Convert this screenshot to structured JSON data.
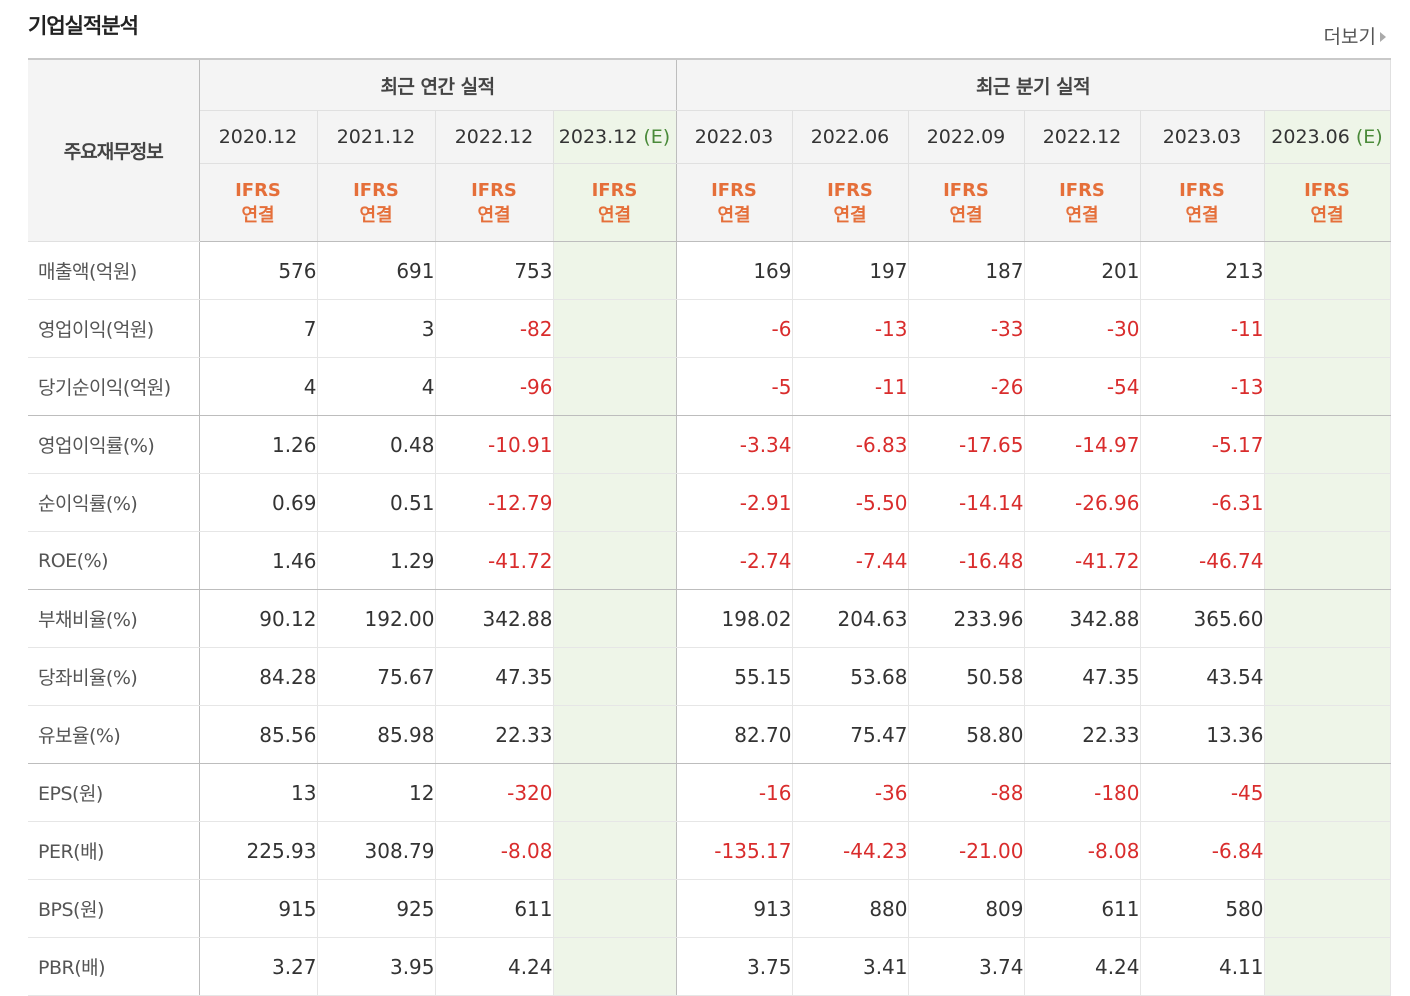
{
  "title": "기업실적분석",
  "more_label": "더보기",
  "row_header": "주요재무정보",
  "groups": {
    "annual": "최근 연간 실적",
    "quarterly": "최근 분기 실적"
  },
  "periods": [
    {
      "label": "2020.12",
      "estimate": ""
    },
    {
      "label": "2021.12",
      "estimate": ""
    },
    {
      "label": "2022.12",
      "estimate": ""
    },
    {
      "label": "2023.12",
      "estimate": "(E)"
    },
    {
      "label": "2022.03",
      "estimate": ""
    },
    {
      "label": "2022.06",
      "estimate": ""
    },
    {
      "label": "2022.09",
      "estimate": ""
    },
    {
      "label": "2022.12",
      "estimate": ""
    },
    {
      "label": "2023.03",
      "estimate": ""
    },
    {
      "label": "2023.06",
      "estimate": "(E)"
    }
  ],
  "standard": {
    "line1": "IFRS",
    "line2": "연결"
  },
  "rows": [
    {
      "label": "매출액(억원)",
      "values": [
        "576",
        "691",
        "753",
        "",
        "169",
        "197",
        "187",
        "201",
        "213",
        ""
      ]
    },
    {
      "label": "영업이익(억원)",
      "values": [
        "7",
        "3",
        "-82",
        "",
        "-6",
        "-13",
        "-33",
        "-30",
        "-11",
        ""
      ]
    },
    {
      "label": "당기순이익(억원)",
      "values": [
        "4",
        "4",
        "-96",
        "",
        "-5",
        "-11",
        "-26",
        "-54",
        "-13",
        ""
      ]
    },
    {
      "label": "영업이익률(%)",
      "values": [
        "1.26",
        "0.48",
        "-10.91",
        "",
        "-3.34",
        "-6.83",
        "-17.65",
        "-14.97",
        "-5.17",
        ""
      ]
    },
    {
      "label": "순이익률(%)",
      "values": [
        "0.69",
        "0.51",
        "-12.79",
        "",
        "-2.91",
        "-5.50",
        "-14.14",
        "-26.96",
        "-6.31",
        ""
      ]
    },
    {
      "label": "ROE(%)",
      "values": [
        "1.46",
        "1.29",
        "-41.72",
        "",
        "-2.74",
        "-7.44",
        "-16.48",
        "-41.72",
        "-46.74",
        ""
      ]
    },
    {
      "label": "부채비율(%)",
      "values": [
        "90.12",
        "192.00",
        "342.88",
        "",
        "198.02",
        "204.63",
        "233.96",
        "342.88",
        "365.60",
        ""
      ]
    },
    {
      "label": "당좌비율(%)",
      "values": [
        "84.28",
        "75.67",
        "47.35",
        "",
        "55.15",
        "53.68",
        "50.58",
        "47.35",
        "43.54",
        ""
      ]
    },
    {
      "label": "유보율(%)",
      "values": [
        "85.56",
        "85.98",
        "22.33",
        "",
        "82.70",
        "75.47",
        "58.80",
        "22.33",
        "13.36",
        ""
      ]
    },
    {
      "label": "EPS(원)",
      "values": [
        "13",
        "12",
        "-320",
        "",
        "-16",
        "-36",
        "-88",
        "-180",
        "-45",
        ""
      ]
    },
    {
      "label": "PER(배)",
      "values": [
        "225.93",
        "308.79",
        "-8.08",
        "",
        "-135.17",
        "-44.23",
        "-21.00",
        "-8.08",
        "-6.84",
        ""
      ]
    },
    {
      "label": "BPS(원)",
      "values": [
        "915",
        "925",
        "611",
        "",
        "913",
        "880",
        "809",
        "611",
        "580",
        ""
      ]
    },
    {
      "label": "PBR(배)",
      "values": [
        "3.27",
        "3.95",
        "4.24",
        "",
        "3.75",
        "3.41",
        "3.74",
        "4.24",
        "4.11",
        ""
      ]
    }
  ],
  "colors": {
    "negative": "#d92c2c",
    "standard": "#e56f3a",
    "estimate_bg": "#eef5e8",
    "estimate_text": "#4a8a3a",
    "header_bg": "#f4f4f4"
  }
}
